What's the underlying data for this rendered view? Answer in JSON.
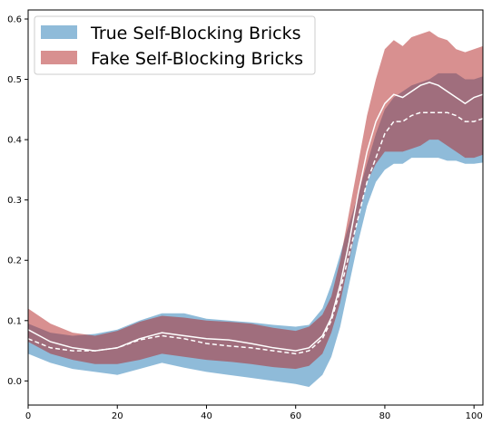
{
  "chart_data": {
    "type": "area",
    "title": "",
    "xlabel": "",
    "ylabel": "",
    "xlim": [
      0,
      102
    ],
    "ylim": [
      -0.04,
      0.615
    ],
    "xticks": [
      0,
      20,
      40,
      60,
      80,
      100
    ],
    "yticks": [
      0.0,
      0.1,
      0.2,
      0.3,
      0.4,
      0.5,
      0.6
    ],
    "xtick_labels": [
      "0",
      "20",
      "40",
      "60",
      "80",
      "100"
    ],
    "ytick_labels": [
      "0.0",
      "0.1",
      "0.2",
      "0.3",
      "0.4",
      "0.5",
      "0.6"
    ],
    "grid": false,
    "legend_position": "top-left",
    "series": [
      {
        "name": "True Self-Blocking Bricks",
        "color": "#1f77b4",
        "line_style": "dashed",
        "x": [
          0,
          5,
          10,
          15,
          20,
          25,
          30,
          35,
          40,
          45,
          50,
          55,
          60,
          63,
          66,
          68,
          70,
          72,
          74,
          76,
          78,
          80,
          82,
          84,
          86,
          88,
          90,
          92,
          94,
          96,
          98,
          100,
          102
        ],
        "mean": [
          0.07,
          0.055,
          0.05,
          0.05,
          0.055,
          0.068,
          0.075,
          0.07,
          0.062,
          0.058,
          0.055,
          0.05,
          0.045,
          0.05,
          0.07,
          0.1,
          0.15,
          0.21,
          0.27,
          0.33,
          0.37,
          0.41,
          0.43,
          0.43,
          0.44,
          0.445,
          0.445,
          0.445,
          0.445,
          0.44,
          0.43,
          0.43,
          0.435
        ],
        "lower": [
          0.045,
          0.03,
          0.02,
          0.015,
          0.01,
          0.02,
          0.03,
          0.022,
          0.015,
          0.01,
          0.005,
          0.0,
          -0.005,
          -0.01,
          0.01,
          0.04,
          0.09,
          0.16,
          0.23,
          0.29,
          0.33,
          0.35,
          0.36,
          0.36,
          0.37,
          0.37,
          0.37,
          0.37,
          0.365,
          0.365,
          0.36,
          0.36,
          0.362
        ],
        "upper": [
          0.095,
          0.08,
          0.075,
          0.078,
          0.085,
          0.1,
          0.112,
          0.112,
          0.103,
          0.1,
          0.097,
          0.093,
          0.09,
          0.093,
          0.12,
          0.16,
          0.21,
          0.26,
          0.31,
          0.36,
          0.41,
          0.45,
          0.47,
          0.48,
          0.49,
          0.495,
          0.5,
          0.51,
          0.51,
          0.51,
          0.5,
          0.5,
          0.505
        ]
      },
      {
        "name": "Fake Self-Blocking Bricks",
        "color": "#b22222",
        "line_style": "solid",
        "x": [
          0,
          5,
          10,
          15,
          20,
          25,
          30,
          35,
          40,
          45,
          50,
          55,
          60,
          63,
          66,
          68,
          70,
          72,
          74,
          76,
          78,
          80,
          82,
          84,
          86,
          88,
          90,
          92,
          94,
          96,
          98,
          100,
          102
        ],
        "mean": [
          0.085,
          0.065,
          0.055,
          0.05,
          0.055,
          0.07,
          0.08,
          0.075,
          0.07,
          0.068,
          0.062,
          0.055,
          0.05,
          0.055,
          0.075,
          0.105,
          0.16,
          0.23,
          0.31,
          0.38,
          0.43,
          0.46,
          0.475,
          0.47,
          0.48,
          0.49,
          0.495,
          0.49,
          0.48,
          0.47,
          0.46,
          0.47,
          0.475
        ],
        "lower": [
          0.065,
          0.045,
          0.035,
          0.028,
          0.028,
          0.035,
          0.045,
          0.04,
          0.035,
          0.032,
          0.028,
          0.023,
          0.02,
          0.025,
          0.045,
          0.08,
          0.13,
          0.2,
          0.27,
          0.33,
          0.36,
          0.38,
          0.38,
          0.38,
          0.385,
          0.39,
          0.4,
          0.4,
          0.39,
          0.38,
          0.37,
          0.37,
          0.375
        ],
        "upper": [
          0.12,
          0.095,
          0.08,
          0.075,
          0.083,
          0.098,
          0.108,
          0.105,
          0.1,
          0.098,
          0.095,
          0.088,
          0.083,
          0.09,
          0.11,
          0.14,
          0.2,
          0.28,
          0.36,
          0.44,
          0.5,
          0.55,
          0.565,
          0.555,
          0.57,
          0.575,
          0.58,
          0.57,
          0.565,
          0.55,
          0.545,
          0.55,
          0.555
        ]
      }
    ]
  }
}
